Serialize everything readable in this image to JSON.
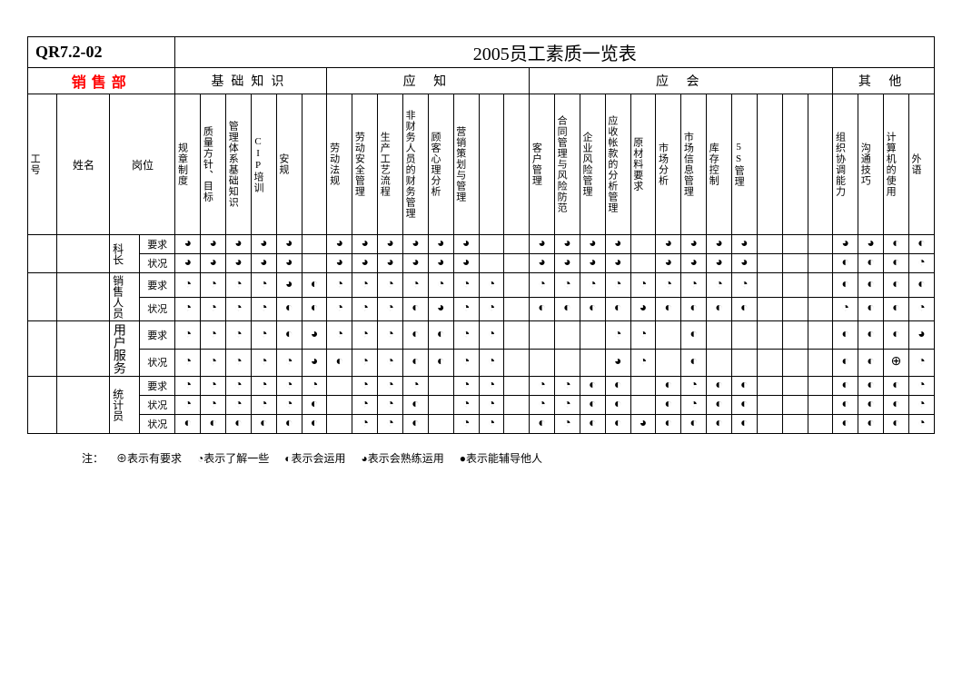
{
  "doc_code": "QR7.2-02",
  "title": "2005员工素质一览表",
  "department": "销售部",
  "sections": {
    "s1": "基础知识",
    "s2": "应        知",
    "s3": "应                会",
    "s4": "其 他"
  },
  "header_cols": {
    "id": "工号",
    "name": "姓名",
    "role": "岗位"
  },
  "cols": {
    "c1": "规章制度",
    "c2": "质量方针、目标",
    "c3": "管理体系基础知识",
    "c4": "CIP培训",
    "c5": "安规",
    "c6": "",
    "c7": "劳动法规",
    "c8": "劳动安全管理",
    "c9": "生产工艺流程",
    "c10": "非财务人员的财务管理",
    "c11": "顾客心理分析",
    "c12": "营销策划与管理",
    "c13": "",
    "c14": "",
    "c15": "客户管理",
    "c16": "合同管理与风险防范",
    "c17": "企业风险管理",
    "c18": "应收帐款的分析管理",
    "c19": "原材料要求",
    "c20": "市场分析",
    "c21": "市场信息管理",
    "c22": "库存控制",
    "c23": "5S管理",
    "c24": "",
    "c25": "",
    "c26": "",
    "c27": "组织协调能力",
    "c28": "沟通技巧",
    "c29": "计算机的使用",
    "c30": "外语"
  },
  "roles": {
    "r1": "科长",
    "r2": "销售人员",
    "r3": "用户服务",
    "r4": "统计员"
  },
  "row_labels": {
    "req": "要求",
    "stat": "状况"
  },
  "legend": {
    "prefix": "注：",
    "l1": "⊕表示有要求",
    "l2": "◔表示了解一些",
    "l3": "◐表示会运用",
    "l4": "◕表示会熟练运用",
    "l5": "●表示能辅导他人"
  },
  "sym": {
    "a": "◕",
    "b": "◐",
    "c": "◔",
    "d": "●",
    "e": "⊕"
  },
  "rows": {
    "r1req": [
      "◕",
      "◕",
      "◕",
      "◕",
      "◕",
      "",
      "◕",
      "◕",
      "◕",
      "◕",
      "◕",
      "◕",
      "",
      "",
      "◕",
      "◕",
      "◕",
      "◕",
      "",
      "◕",
      "◕",
      "◕",
      "◕",
      "",
      "",
      "",
      "◕",
      "◕",
      "◐",
      "◐"
    ],
    "r1stat": [
      "◕",
      "◕",
      "◕",
      "◕",
      "◕",
      "",
      "◕",
      "◕",
      "◕",
      "◕",
      "◕",
      "◕",
      "",
      "",
      "◕",
      "◕",
      "◕",
      "◕",
      "",
      "◕",
      "◕",
      "◕",
      "◕",
      "",
      "",
      "",
      "◐",
      "◐",
      "◐",
      "◔"
    ],
    "r2req": [
      "◔",
      "◔",
      "◔",
      "◔",
      "◕",
      "◐",
      "◔",
      "◔",
      "◔",
      "◔",
      "◔",
      "◔",
      "◔",
      "",
      "◔",
      "◔",
      "◔",
      "◔",
      "◔",
      "◔",
      "◔",
      "◔",
      "◔",
      "",
      "",
      "",
      "◐",
      "◐",
      "◐",
      "◐"
    ],
    "r2stat": [
      "◔",
      "◔",
      "◔",
      "◔",
      "◐",
      "◐",
      "◔",
      "◔",
      "◔",
      "◐",
      "◕",
      "◔",
      "◔",
      "",
      "◐",
      "◐",
      "◐",
      "◐",
      "◕",
      "◐",
      "◐",
      "◐",
      "◐",
      "",
      "",
      "",
      "◔",
      "◐",
      "◐",
      "◔"
    ],
    "r3req": [
      "◔",
      "◔",
      "◔",
      "◔",
      "◐",
      "◕",
      "◔",
      "◔",
      "◔",
      "◐",
      "◐",
      "◔",
      "◔",
      "",
      "",
      "",
      "",
      "◔",
      "◔",
      "",
      "◐",
      "",
      "",
      "",
      "",
      "",
      "◐",
      "◐",
      "◐",
      "◕"
    ],
    "r3stat": [
      "◔",
      "◔",
      "◔",
      "◔",
      "◔",
      "◕",
      "◐",
      "◔",
      "◔",
      "◐",
      "◐",
      "◔",
      "◔",
      "",
      "",
      "",
      "",
      "◕",
      "◔",
      "",
      "◐",
      "",
      "",
      "",
      "",
      "",
      "◐",
      "◐",
      "⊕",
      "◔"
    ],
    "r4req": [
      "◔",
      "◔",
      "◔",
      "◔",
      "◔",
      "◔",
      "",
      "◔",
      "◔",
      "◔",
      "",
      "◔",
      "◔",
      "",
      "◔",
      "◔",
      "◐",
      "◐",
      "",
      "◐",
      "◔",
      "◐",
      "◐",
      "",
      "",
      "",
      "◐",
      "◐",
      "◐",
      "◔"
    ],
    "r4stat1": [
      "◔",
      "◔",
      "◔",
      "◔",
      "◔",
      "◐",
      "",
      "◔",
      "◔",
      "◐",
      "",
      "◔",
      "◔",
      "",
      "◔",
      "◔",
      "◐",
      "◐",
      "",
      "◐",
      "◔",
      "◐",
      "◐",
      "",
      "",
      "",
      "◐",
      "◐",
      "◐",
      "◔"
    ],
    "r4stat2": [
      "◐",
      "◐",
      "◐",
      "◐",
      "◐",
      "◐",
      "",
      "◔",
      "◔",
      "◐",
      "",
      "◔",
      "◔",
      "",
      "◐",
      "◔",
      "◐",
      "◐",
      "◕",
      "◐",
      "◐",
      "◐",
      "◐",
      "",
      "",
      "",
      "◐",
      "◐",
      "◐",
      "◔"
    ]
  }
}
